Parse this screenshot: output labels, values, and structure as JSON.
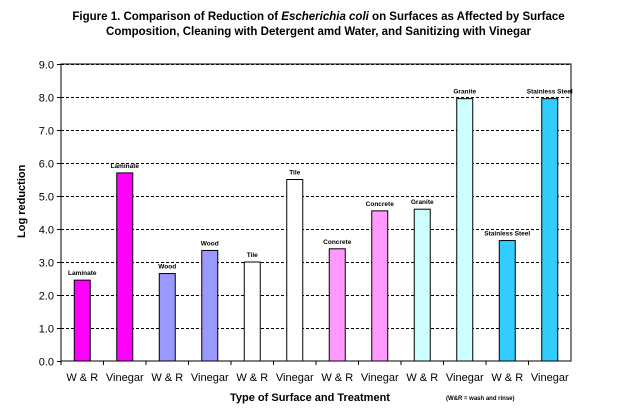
{
  "chart_data": {
    "type": "bar",
    "title_line1_pre": "Figure 1.  Comparison of Reduction of ",
    "title_italic": "Escherichia coli",
    "title_line1_post": " on Surfaces as Affected by Surface",
    "title_line2": "Composition, Cleaning with Detergent amd Water, and Sanitizing with Vinegar",
    "xlabel": "Type of Surface and Treatment",
    "ylabel": "Log reduction",
    "note": "(W&R = wash and rinse)",
    "ylim": [
      0,
      9
    ],
    "yticks": [
      "0.0",
      "1.0",
      "2.0",
      "3.0",
      "4.0",
      "5.0",
      "6.0",
      "7.0",
      "8.0",
      "9.0"
    ],
    "grid": true,
    "categories": [
      "W & R",
      "Vinegar",
      "W & R",
      "Vinegar",
      "W & R",
      "Vinegar",
      "W & R",
      "Vinegar",
      "W & R",
      "Vinegar",
      "W & R",
      "Vinegar"
    ],
    "bars": [
      {
        "value": 2.45,
        "label": "Laminate",
        "color": "#ff00ff"
      },
      {
        "value": 5.7,
        "label": "Laminate",
        "color": "#ff00ff"
      },
      {
        "value": 2.65,
        "label": "Wood",
        "color": "#9999ff"
      },
      {
        "value": 3.35,
        "label": "Wood",
        "color": "#9999ff"
      },
      {
        "value": 3.0,
        "label": "Tile",
        "color": "#ffffff"
      },
      {
        "value": 5.5,
        "label": "Tile",
        "color": "#ffffff"
      },
      {
        "value": 3.4,
        "label": "Concrete",
        "color": "#ff99ff"
      },
      {
        "value": 4.55,
        "label": "Concrete",
        "color": "#ff99ff"
      },
      {
        "value": 4.6,
        "label": "Granite",
        "color": "#ccffff"
      },
      {
        "value": 7.95,
        "label": "Granite",
        "color": "#ccffff"
      },
      {
        "value": 3.65,
        "label": "Stainless Steel",
        "color": "#33ccff"
      },
      {
        "value": 7.95,
        "label": "Stainless Steel",
        "color": "#33ccff"
      }
    ]
  }
}
